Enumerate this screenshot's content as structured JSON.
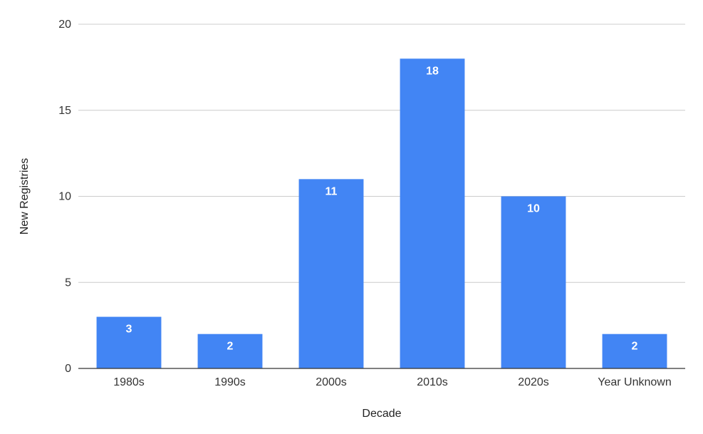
{
  "chart_data": {
    "type": "bar",
    "title": "",
    "xlabel": "Decade",
    "ylabel": "New Registries",
    "categories": [
      "1980s",
      "1990s",
      "2000s",
      "2010s",
      "2020s",
      "Year Unknown"
    ],
    "values": [
      3,
      2,
      11,
      18,
      10,
      2
    ],
    "ylim": [
      0,
      20
    ],
    "yticks": [
      0,
      5,
      10,
      15,
      20
    ],
    "grid": true,
    "legend": "none",
    "bar_color": "#4285f4",
    "gridline_color": "#cccccc",
    "data_labels": true
  }
}
